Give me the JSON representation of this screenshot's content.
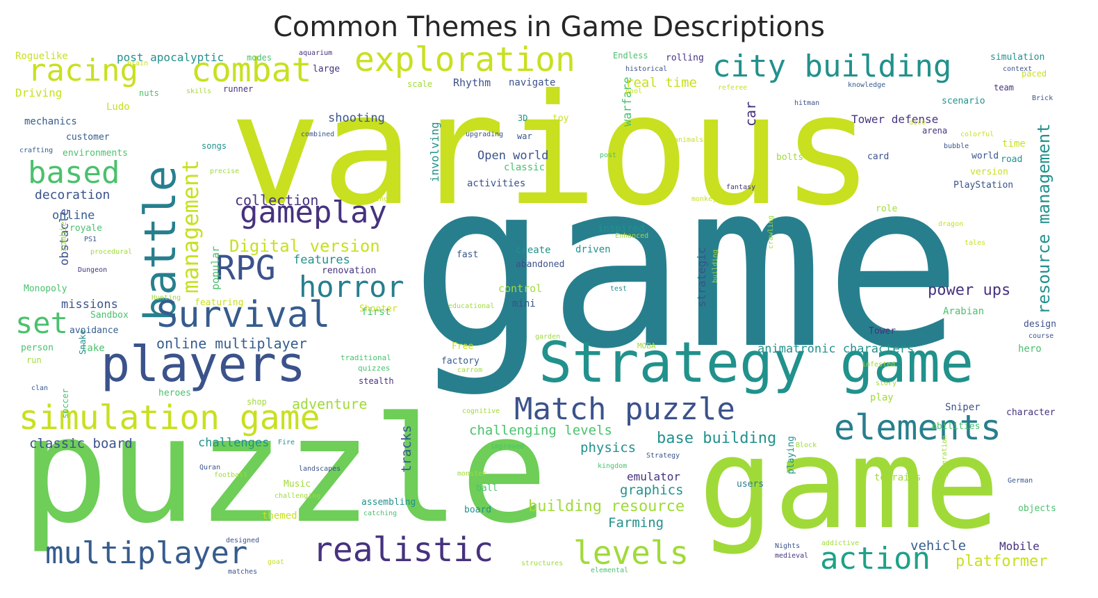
{
  "title": "Common Themes in Game Descriptions",
  "palette": {
    "dark_purple": "#46327e",
    "indigo": "#3b528b",
    "blue": "#365c8d",
    "teal_blue": "#277f8e",
    "teal": "#21918c",
    "green_teal": "#1fa187",
    "green": "#4ac16d",
    "light_green": "#6ece58",
    "lime": "#a0da39",
    "yellow_green": "#c8e020",
    "yellow": "#fde725"
  },
  "words": [
    "various",
    "game",
    "puzzle",
    "game",
    "Strategy game",
    "players",
    "simulation game",
    "battle",
    "exploration",
    "combat",
    "racing",
    "city building",
    "Match puzzle",
    "elements",
    "realistic",
    "multiplayer",
    "action",
    "levels",
    "Survival",
    "horror",
    "RPG",
    "gameplay",
    "based",
    "management",
    "set",
    "resource management",
    "Digital version",
    "collection",
    "online multiplayer",
    "car",
    "adventure",
    "platformer",
    "power ups",
    "base building",
    "building resource",
    "challenging levels",
    "animatronic characters",
    "classic board",
    "challenges",
    "physics",
    "Tower defense",
    "Open world",
    "shooting",
    "warfare",
    "real time",
    "involving",
    "tracks",
    "graphics",
    "emulator",
    "Farming",
    "vehicle",
    "Mobile",
    "missions",
    "obstacle",
    "strategic",
    "popular",
    "features",
    "decoration",
    "online",
    "post apocalyptic",
    "Rhythm",
    "navigate",
    "activities",
    "classic",
    "mini",
    "control",
    "create",
    "driven",
    "abandoned",
    "fast",
    "inspired",
    "mechanics",
    "customer",
    "environments",
    "royale",
    "zombie",
    "Monopoly",
    "Sandbox",
    "avoidance",
    "person",
    "take",
    "run",
    "Snake",
    "soccer",
    "heroes",
    "shop",
    "Shooter",
    "Free",
    "factory",
    "first",
    "renovation",
    "featuring",
    "Ludo",
    "Driving",
    "Roguelike",
    "large",
    "modes",
    "Endless",
    "rolling",
    "simulation",
    "paced",
    "team",
    "scenario",
    "arena",
    "time",
    "road",
    "world",
    "version",
    "PlayStation",
    "role",
    "Arabian",
    "design",
    "hero",
    "character",
    "Sniper",
    "abilities",
    "play",
    "terrains",
    "playing",
    "users",
    "Music",
    "assembling",
    "themed",
    "board",
    "ball",
    "toy",
    "war",
    "3D",
    "card",
    "bolts",
    "songs",
    "Tower",
    "objects",
    "scale",
    "runner",
    "nuts",
    "MOBA",
    "traditional",
    "stealth",
    "quizzes",
    "cognitive",
    "Fire",
    "Quran",
    "football",
    "landscapes",
    "challenging",
    "catching",
    "monster",
    "improved",
    "kingdom",
    "Strategy",
    "Block",
    "generation",
    "German",
    "Nights",
    "addictive",
    "medieval",
    "structures",
    "elemental",
    "designed",
    "goat",
    "matches",
    "dragon",
    "tales",
    "Brick",
    "dice",
    "bubble",
    "colorful",
    "post",
    "animals",
    "fantasy",
    "monkey",
    "breaking",
    "precise",
    "combined",
    "upgrading",
    "hitman",
    "pool",
    "historical",
    "referee",
    "knowledge",
    "context",
    "aquarium",
    "brain",
    "skills",
    "crafting",
    "PS1",
    "procedural",
    "Dungeon",
    "Hunting",
    "educational",
    "test",
    "building",
    "crawling",
    "Enhanced",
    "garden",
    "carrom",
    "course",
    "infested",
    "story",
    "clan"
  ]
}
